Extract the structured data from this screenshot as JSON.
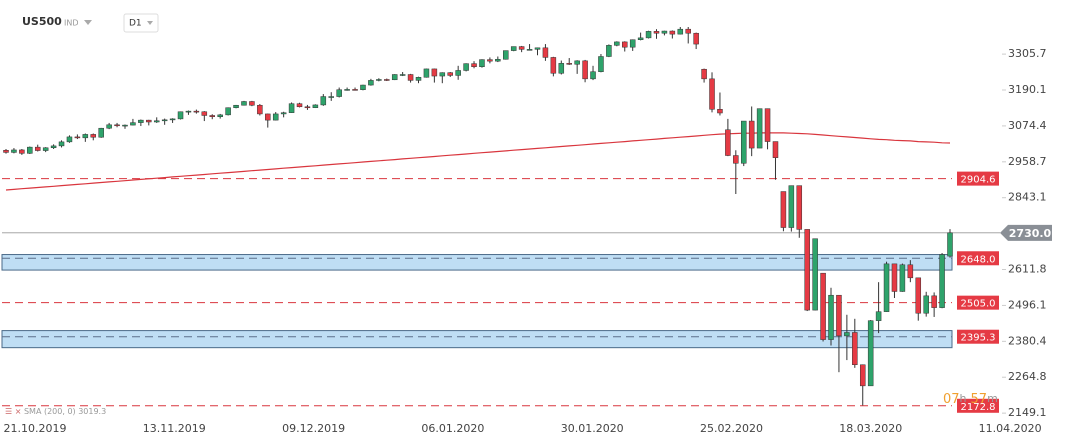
{
  "header": {
    "symbol": "US500",
    "kind": "IND",
    "timeframe": "D1"
  },
  "countdown": {
    "hours": "07",
    "hours_unit": "h",
    "minutes": "57",
    "minutes_unit": "m"
  },
  "indicator_label": "SMA (200, 0) 3019.3",
  "chart_data": {
    "type": "candlestick",
    "up_color": "#2ea36b",
    "down_color": "#e53a44",
    "ylim": [
      2127,
      3480
    ],
    "yticks": [
      3305.7,
      3190.1,
      3074.4,
      2958.7,
      2843.1,
      2611.8,
      2496.1,
      2380.4,
      2264.8,
      2149.1
    ],
    "xticks": [
      "21.10.2019",
      "13.11.2019",
      "09.12.2019",
      "06.01.2020",
      "30.01.2020",
      "25.02.2020",
      "18.03.2020",
      "11.04.2020"
    ],
    "current_price": {
      "value": 2730,
      "label": "2730.0"
    },
    "levels": [
      {
        "value": 2904.6,
        "label": "2904.6"
      },
      {
        "value": 2505,
        "label": "2505.0"
      },
      {
        "value": 2172.8,
        "label": "2172.8"
      }
    ],
    "zones": [
      {
        "level": {
          "value": 2648,
          "label": "2648.0"
        },
        "range": [
          2610,
          2660
        ]
      },
      {
        "level": {
          "value": 2395.3,
          "label": "2395.3"
        },
        "range": [
          2360,
          2415
        ]
      }
    ],
    "sma": {
      "name": "SMA 200",
      "color": "#d9363e",
      "values": [
        2868,
        2870,
        2872,
        2874,
        2876,
        2878,
        2880,
        2882,
        2884,
        2886,
        2888,
        2890,
        2892,
        2894,
        2896,
        2898,
        2900,
        2902,
        2904,
        2906,
        2908,
        2910,
        2912,
        2914,
        2916,
        2918,
        2920,
        2922,
        2924,
        2926,
        2928,
        2930,
        2932,
        2934,
        2936,
        2938,
        2940,
        2942,
        2944,
        2946,
        2948,
        2950,
        2952,
        2954,
        2956,
        2958,
        2960,
        2962,
        2964,
        2966,
        2968,
        2970,
        2972,
        2974,
        2976,
        2978,
        2980,
        2982,
        2984,
        2986,
        2988,
        2990,
        2992,
        2994,
        2996,
        2998,
        3000,
        3002,
        3004,
        3006,
        3008,
        3010,
        3012,
        3014,
        3016,
        3018,
        3020,
        3022,
        3024,
        3026,
        3028,
        3030,
        3032,
        3034,
        3036,
        3038,
        3040,
        3042,
        3044,
        3046,
        3048,
        3049,
        3050,
        3051,
        3051,
        3052,
        3052,
        3052,
        3052,
        3051,
        3050,
        3049,
        3047,
        3045,
        3043,
        3041,
        3039,
        3037,
        3035,
        3033,
        3031,
        3030,
        3028,
        3027,
        3026,
        3024,
        3023,
        3022,
        3020,
        3019.3
      ]
    },
    "candles": [
      [
        2996,
        3000,
        2985,
        2989
      ],
      [
        2989,
        3003,
        2986,
        2997
      ],
      [
        2997,
        3000,
        2981,
        2986
      ],
      [
        2986,
        3008,
        2984,
        3006
      ],
      [
        3006,
        3014,
        2992,
        2995
      ],
      [
        2995,
        3006,
        2990,
        3004
      ],
      [
        3004,
        3015,
        3000,
        3010
      ],
      [
        3010,
        3028,
        3005,
        3023
      ],
      [
        3023,
        3044,
        3020,
        3039
      ],
      [
        3039,
        3047,
        3032,
        3036
      ],
      [
        3036,
        3050,
        3023,
        3047
      ],
      [
        3047,
        3050,
        3028,
        3038
      ],
      [
        3038,
        3068,
        3036,
        3067
      ],
      [
        3067,
        3084,
        3064,
        3078
      ],
      [
        3078,
        3084,
        3070,
        3075
      ],
      [
        3075,
        3079,
        3065,
        3077
      ],
      [
        3077,
        3097,
        3076,
        3085
      ],
      [
        3085,
        3095,
        3074,
        3093
      ],
      [
        3093,
        3094,
        3076,
        3087
      ],
      [
        3087,
        3102,
        3084,
        3091
      ],
      [
        3091,
        3098,
        3078,
        3094
      ],
      [
        3094,
        3099,
        3084,
        3097
      ],
      [
        3097,
        3121,
        3095,
        3120
      ],
      [
        3120,
        3124,
        3110,
        3122
      ],
      [
        3122,
        3127,
        3114,
        3120
      ],
      [
        3120,
        3122,
        3090,
        3108
      ],
      [
        3108,
        3112,
        3096,
        3104
      ],
      [
        3104,
        3113,
        3098,
        3110
      ],
      [
        3110,
        3134,
        3108,
        3133
      ],
      [
        3133,
        3142,
        3131,
        3141
      ],
      [
        3141,
        3155,
        3140,
        3153
      ],
      [
        3153,
        3155,
        3138,
        3141
      ],
      [
        3141,
        3145,
        3108,
        3113
      ],
      [
        3113,
        3114,
        3069,
        3093
      ],
      [
        3093,
        3119,
        3092,
        3113
      ],
      [
        3113,
        3120,
        3102,
        3117
      ],
      [
        3117,
        3150,
        3116,
        3146
      ],
      [
        3146,
        3149,
        3134,
        3136
      ],
      [
        3136,
        3142,
        3126,
        3133
      ],
      [
        3133,
        3144,
        3132,
        3142
      ],
      [
        3142,
        3177,
        3139,
        3169
      ],
      [
        3169,
        3183,
        3155,
        3169
      ],
      [
        3169,
        3198,
        3166,
        3191
      ],
      [
        3191,
        3198,
        3188,
        3192
      ],
      [
        3192,
        3198,
        3189,
        3191
      ],
      [
        3191,
        3207,
        3189,
        3206
      ],
      [
        3206,
        3226,
        3204,
        3221
      ],
      [
        3221,
        3228,
        3218,
        3224
      ],
      [
        3224,
        3227,
        3219,
        3223
      ],
      [
        3223,
        3241,
        3222,
        3240
      ],
      [
        3240,
        3248,
        3235,
        3240
      ],
      [
        3240,
        3242,
        3214,
        3221
      ],
      [
        3221,
        3233,
        3212,
        3231
      ],
      [
        3231,
        3259,
        3230,
        3258
      ],
      [
        3258,
        3259,
        3214,
        3235
      ],
      [
        3235,
        3247,
        3212,
        3246
      ],
      [
        3246,
        3248,
        3232,
        3237
      ],
      [
        3237,
        3268,
        3223,
        3253
      ],
      [
        3253,
        3276,
        3250,
        3275
      ],
      [
        3275,
        3283,
        3260,
        3265
      ],
      [
        3265,
        3289,
        3262,
        3288
      ],
      [
        3288,
        3295,
        3276,
        3283
      ],
      [
        3283,
        3298,
        3280,
        3289
      ],
      [
        3289,
        3317,
        3288,
        3317
      ],
      [
        3317,
        3330,
        3315,
        3330
      ],
      [
        3330,
        3332,
        3312,
        3321
      ],
      [
        3321,
        3338,
        3318,
        3321
      ],
      [
        3321,
        3327,
        3302,
        3326
      ],
      [
        3326,
        3338,
        3284,
        3295
      ],
      [
        3295,
        3297,
        3234,
        3244
      ],
      [
        3244,
        3285,
        3240,
        3276
      ],
      [
        3276,
        3293,
        3271,
        3273
      ],
      [
        3273,
        3286,
        3242,
        3284
      ],
      [
        3284,
        3287,
        3215,
        3226
      ],
      [
        3226,
        3268,
        3222,
        3249
      ],
      [
        3249,
        3306,
        3247,
        3298
      ],
      [
        3298,
        3337,
        3296,
        3334
      ],
      [
        3334,
        3347,
        3331,
        3345
      ],
      [
        3345,
        3347,
        3314,
        3328
      ],
      [
        3328,
        3353,
        3316,
        3352
      ],
      [
        3352,
        3375,
        3350,
        3358
      ],
      [
        3358,
        3381,
        3356,
        3379
      ],
      [
        3379,
        3386,
        3355,
        3373
      ],
      [
        3373,
        3381,
        3366,
        3380
      ],
      [
        3380,
        3382,
        3356,
        3370
      ],
      [
        3370,
        3393,
        3369,
        3386
      ],
      [
        3386,
        3393,
        3340,
        3373
      ],
      [
        3373,
        3375,
        3322,
        3338
      ],
      [
        3257,
        3259,
        3214,
        3226
      ],
      [
        3226,
        3247,
        3118,
        3128
      ],
      [
        3128,
        3182,
        3108,
        3116
      ],
      [
        3062,
        3097,
        2977,
        2979
      ],
      [
        2979,
        2996,
        2855,
        2954
      ],
      [
        2954,
        3090,
        2945,
        3090
      ],
      [
        3090,
        3137,
        2977,
        3003
      ],
      [
        3003,
        3130,
        3003,
        3130
      ],
      [
        3130,
        3130,
        2999,
        3024
      ],
      [
        3024,
        3024,
        2901,
        2972
      ],
      [
        2863,
        2863,
        2735,
        2747
      ],
      [
        2747,
        2882,
        2734,
        2882
      ],
      [
        2882,
        2882,
        2714,
        2741
      ],
      [
        2741,
        2741,
        2478,
        2481
      ],
      [
        2481,
        2711,
        2480,
        2711
      ],
      [
        2600,
        2600,
        2380,
        2386
      ],
      [
        2386,
        2553,
        2367,
        2529
      ],
      [
        2529,
        2529,
        2281,
        2398
      ],
      [
        2398,
        2466,
        2320,
        2409
      ],
      [
        2409,
        2453,
        2295,
        2305
      ],
      [
        2305,
        2306,
        2174,
        2237
      ],
      [
        2237,
        2449,
        2237,
        2447
      ],
      [
        2447,
        2571,
        2407,
        2476
      ],
      [
        2476,
        2637,
        2475,
        2630
      ],
      [
        2630,
        2630,
        2520,
        2541
      ],
      [
        2541,
        2631,
        2540,
        2627
      ],
      [
        2627,
        2642,
        2571,
        2585
      ],
      [
        2585,
        2585,
        2447,
        2471
      ],
      [
        2471,
        2540,
        2460,
        2527
      ],
      [
        2527,
        2538,
        2459,
        2489
      ],
      [
        2489,
        2665,
        2487,
        2660
      ],
      [
        2655,
        2742,
        2650,
        2730
      ]
    ]
  }
}
